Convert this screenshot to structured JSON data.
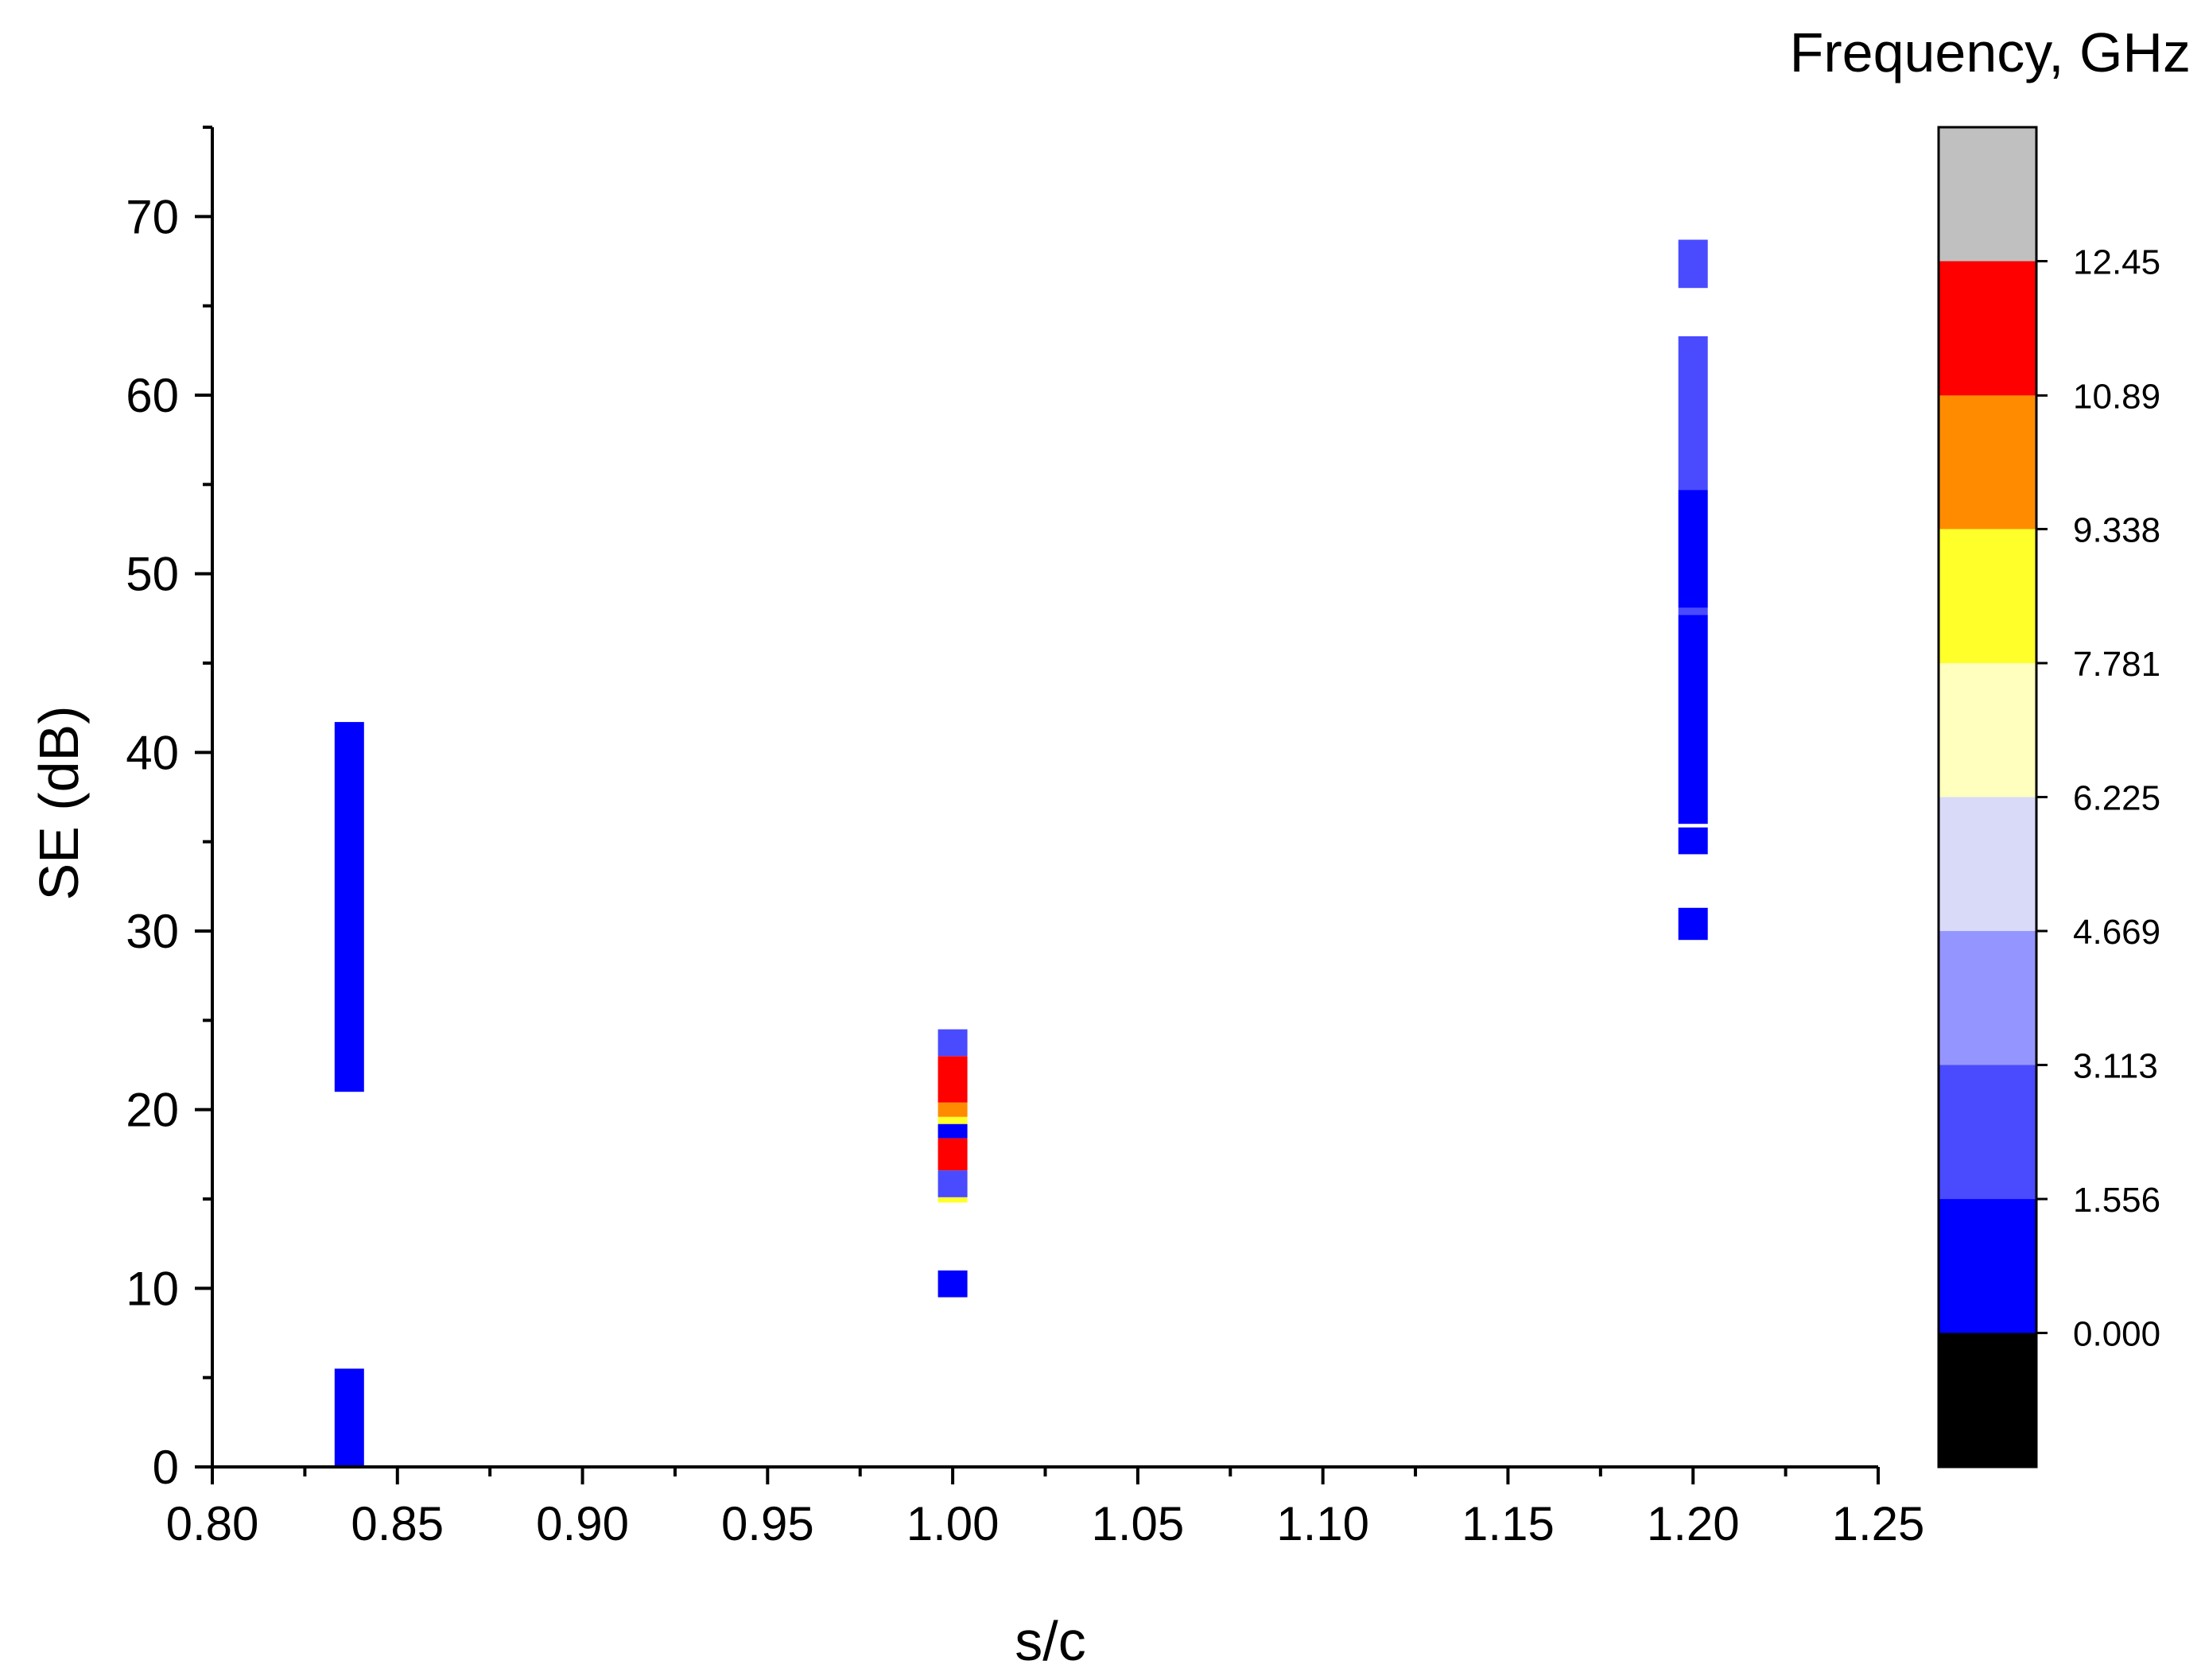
{
  "chart_data": {
    "type": "heatmap",
    "xlabel": "s/c",
    "ylabel": "SE (dB)",
    "colorbar_title": "Frequency, GHz",
    "xlim": [
      0.8,
      1.25
    ],
    "ylim": [
      0,
      75
    ],
    "x_ticks": [
      "0.80",
      "0.85",
      "0.90",
      "0.95",
      "1.00",
      "1.05",
      "1.10",
      "1.15",
      "1.20",
      "1.25"
    ],
    "y_ticks": [
      "0",
      "10",
      "20",
      "30",
      "40",
      "50",
      "60",
      "70"
    ],
    "colorbar": {
      "range": [
        -1.556,
        14.006
      ],
      "tick_values": [
        0.0,
        1.556,
        3.113,
        4.669,
        6.225,
        7.781,
        9.338,
        10.89,
        12.45
      ],
      "tick_labels": [
        "0.000",
        "1.556",
        "3.113",
        "4.669",
        "6.225",
        "7.781",
        "9.338",
        "10.89",
        "12.45"
      ],
      "bands": [
        {
          "from": -1.556,
          "to": 0.0,
          "color": "#000000"
        },
        {
          "from": 0.0,
          "to": 1.556,
          "color": "#0000FF"
        },
        {
          "from": 1.556,
          "to": 3.113,
          "color": "#4A4AFF"
        },
        {
          "from": 3.113,
          "to": 4.669,
          "color": "#9595FF"
        },
        {
          "from": 4.669,
          "to": 6.225,
          "color": "#D9D9F8"
        },
        {
          "from": 6.225,
          "to": 7.781,
          "color": "#FFFFBE"
        },
        {
          "from": 7.781,
          "to": 9.338,
          "color": "#FFFF2A"
        },
        {
          "from": 9.338,
          "to": 10.89,
          "color": "#FF8C00"
        },
        {
          "from": 10.89,
          "to": 12.45,
          "color": "#FF0000"
        },
        {
          "from": 12.45,
          "to": 14.006,
          "color": "#C0C0C0"
        }
      ]
    },
    "series": [
      {
        "x": 0.837,
        "segments": [
          {
            "y0": 0.0,
            "y1": 5.5,
            "color": "#0000FF"
          },
          {
            "y0": 21.0,
            "y1": 41.7,
            "color": "#0000FF"
          }
        ]
      },
      {
        "x": 1.0,
        "segments": [
          {
            "y0": 9.5,
            "y1": 11.0,
            "color": "#0000FF"
          },
          {
            "y0": 14.8,
            "y1": 15.1,
            "color": "#FFFF2A"
          },
          {
            "y0": 15.1,
            "y1": 16.6,
            "color": "#4A4AFF"
          },
          {
            "y0": 16.6,
            "y1": 18.4,
            "color": "#FF0000"
          },
          {
            "y0": 18.4,
            "y1": 19.2,
            "color": "#0000FF"
          },
          {
            "y0": 19.2,
            "y1": 19.6,
            "color": "#FFFF2A"
          },
          {
            "y0": 19.6,
            "y1": 20.4,
            "color": "#FF8C00"
          },
          {
            "y0": 20.4,
            "y1": 23.0,
            "color": "#FF0000"
          },
          {
            "y0": 23.0,
            "y1": 24.5,
            "color": "#4A4AFF"
          }
        ]
      },
      {
        "x": 1.2,
        "segments": [
          {
            "y0": 29.5,
            "y1": 31.3,
            "color": "#0000FF"
          },
          {
            "y0": 34.3,
            "y1": 35.8,
            "color": "#0000FF"
          },
          {
            "y0": 36.0,
            "y1": 47.7,
            "color": "#0000FF"
          },
          {
            "y0": 47.7,
            "y1": 48.1,
            "color": "#4A4AFF"
          },
          {
            "y0": 48.1,
            "y1": 54.7,
            "color": "#0000FF"
          },
          {
            "y0": 54.7,
            "y1": 63.3,
            "color": "#4A4AFF"
          },
          {
            "y0": 66.0,
            "y1": 68.7,
            "color": "#4A4AFF"
          }
        ]
      }
    ]
  }
}
